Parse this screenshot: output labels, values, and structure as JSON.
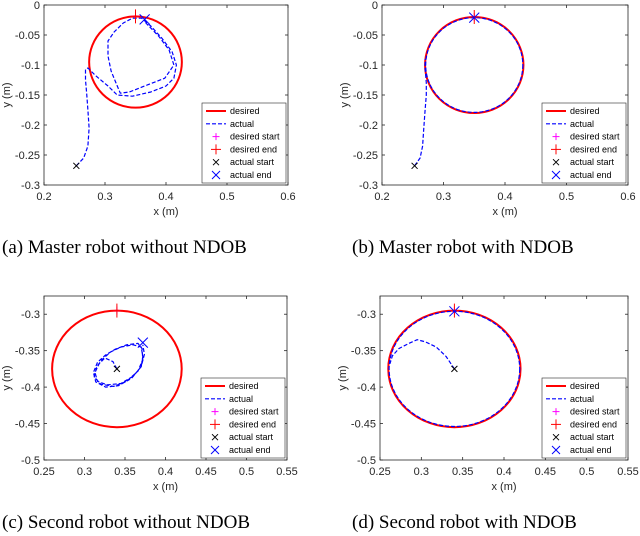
{
  "chart_data": [
    {
      "type": "line",
      "caption": "(a) Master robot without NDOB",
      "xlabel": "x (m)",
      "ylabel": "y (m)",
      "xlim": [
        0.2,
        0.6
      ],
      "ylim": [
        -0.3,
        0
      ],
      "xticks": [
        "0.2",
        "0.3",
        "0.4",
        "0.5",
        "0.6"
      ],
      "yticks": [
        "0",
        "-0.05",
        "-0.1",
        "-0.15",
        "-0.2",
        "-0.25",
        "-0.3"
      ],
      "legend_position": "lower-right",
      "desired_circle": {
        "center": [
          0.35,
          -0.095
        ],
        "radius": 0.076
      },
      "actual_path": [
        [
          0.253,
          -0.268
        ],
        [
          0.265,
          -0.255
        ],
        [
          0.272,
          -0.235
        ],
        [
          0.274,
          -0.205
        ],
        [
          0.272,
          -0.175
        ],
        [
          0.27,
          -0.148
        ],
        [
          0.268,
          -0.125
        ],
        [
          0.268,
          -0.108
        ],
        [
          0.272,
          -0.105
        ],
        [
          0.285,
          -0.118
        ],
        [
          0.305,
          -0.135
        ],
        [
          0.32,
          -0.15
        ],
        [
          0.345,
          -0.152
        ],
        [
          0.375,
          -0.145
        ],
        [
          0.4,
          -0.135
        ],
        [
          0.413,
          -0.122
        ],
        [
          0.417,
          -0.1
        ],
        [
          0.41,
          -0.078
        ],
        [
          0.393,
          -0.055
        ],
        [
          0.375,
          -0.035
        ],
        [
          0.36,
          -0.022
        ],
        [
          0.345,
          -0.022
        ],
        [
          0.33,
          -0.03
        ],
        [
          0.315,
          -0.045
        ],
        [
          0.305,
          -0.06
        ],
        [
          0.305,
          -0.085
        ],
        [
          0.31,
          -0.11
        ],
        [
          0.318,
          -0.13
        ],
        [
          0.325,
          -0.147
        ],
        [
          0.34,
          -0.145
        ],
        [
          0.37,
          -0.133
        ],
        [
          0.398,
          -0.122
        ],
        [
          0.413,
          -0.1
        ],
        [
          0.405,
          -0.075
        ],
        [
          0.388,
          -0.052
        ],
        [
          0.367,
          -0.03
        ],
        [
          0.365,
          -0.024
        ]
      ],
      "desired_start": [
        0.35,
        -0.019
      ],
      "desired_end": [
        0.35,
        -0.019
      ],
      "actual_start": [
        0.253,
        -0.268
      ],
      "actual_end": [
        0.365,
        -0.024
      ],
      "legend": [
        "desired",
        "actual",
        "desired start",
        "desired end",
        "actual start",
        "actual end"
      ],
      "colors": {
        "desired": "#ff0000",
        "actual": "#0000ff",
        "desired_start": "#ff00ff",
        "desired_end": "#ff0000",
        "actual_start": "#000000",
        "actual_end": "#0000ff"
      }
    },
    {
      "type": "line",
      "caption": "(b) Master robot with NDOB",
      "xlabel": "x (m)",
      "ylabel": "y (m)",
      "xlim": [
        0.2,
        0.6
      ],
      "ylim": [
        -0.3,
        0
      ],
      "xticks": [
        "0.2",
        "0.3",
        "0.4",
        "0.5",
        "0.6"
      ],
      "yticks": [
        "0",
        "-0.05",
        "-0.1",
        "-0.15",
        "-0.2",
        "-0.25",
        "-0.3"
      ],
      "legend_position": "lower-right",
      "desired_circle": {
        "center": [
          0.35,
          -0.1
        ],
        "radius": 0.08
      },
      "actual_path": [
        [
          0.253,
          -0.268
        ],
        [
          0.262,
          -0.255
        ],
        [
          0.266,
          -0.235
        ],
        [
          0.268,
          -0.205
        ],
        [
          0.27,
          -0.175
        ],
        [
          0.272,
          -0.15
        ],
        [
          0.272,
          -0.13
        ],
        [
          0.27,
          -0.105
        ],
        [
          0.27,
          -0.09
        ]
      ],
      "actual_circle": {
        "center": [
          0.35,
          -0.1
        ],
        "radius": 0.079
      },
      "desired_start": [
        0.35,
        -0.02
      ],
      "desired_end": [
        0.35,
        -0.02
      ],
      "actual_start": [
        0.253,
        -0.268
      ],
      "actual_end": [
        0.35,
        -0.021
      ],
      "legend": [
        "desired",
        "actual",
        "desired start",
        "desired end",
        "actual start",
        "actual end"
      ],
      "colors": {
        "desired": "#ff0000",
        "actual": "#0000ff",
        "desired_start": "#ff00ff",
        "desired_end": "#ff0000",
        "actual_start": "#000000",
        "actual_end": "#0000ff"
      }
    },
    {
      "type": "line",
      "caption": "(c) Second robot without NDOB",
      "xlabel": "x (m)",
      "ylabel": "y (m)",
      "xlim": [
        0.25,
        0.55
      ],
      "ylim": [
        -0.5,
        -0.275
      ],
      "xticks": [
        "0.25",
        "0.3",
        "0.35",
        "0.4",
        "0.45",
        "0.5",
        "0.55"
      ],
      "yticks": [
        "-0.3",
        "-0.35",
        "-0.4",
        "-0.45",
        "-0.5"
      ],
      "legend_position": "lower-right",
      "desired_circle": {
        "center": [
          0.34,
          -0.375
        ],
        "radius": 0.08
      },
      "actual_path": [
        [
          0.34,
          -0.375
        ],
        [
          0.335,
          -0.365
        ],
        [
          0.325,
          -0.36
        ],
        [
          0.318,
          -0.368
        ],
        [
          0.313,
          -0.38
        ],
        [
          0.316,
          -0.392
        ],
        [
          0.328,
          -0.397
        ],
        [
          0.345,
          -0.395
        ],
        [
          0.36,
          -0.385
        ],
        [
          0.37,
          -0.372
        ],
        [
          0.372,
          -0.358
        ],
        [
          0.37,
          -0.345
        ],
        [
          0.36,
          -0.342
        ],
        [
          0.345,
          -0.345
        ],
        [
          0.332,
          -0.352
        ],
        [
          0.322,
          -0.362
        ],
        [
          0.315,
          -0.372
        ],
        [
          0.312,
          -0.386
        ],
        [
          0.32,
          -0.396
        ],
        [
          0.336,
          -0.399
        ],
        [
          0.352,
          -0.392
        ],
        [
          0.366,
          -0.378
        ],
        [
          0.372,
          -0.362
        ],
        [
          0.371,
          -0.347
        ],
        [
          0.366,
          -0.34
        ],
        [
          0.352,
          -0.342
        ],
        [
          0.338,
          -0.348
        ],
        [
          0.326,
          -0.356
        ],
        [
          0.316,
          -0.366
        ],
        [
          0.311,
          -0.38
        ],
        [
          0.314,
          -0.393
        ],
        [
          0.326,
          -0.4
        ],
        [
          0.342,
          -0.398
        ],
        [
          0.358,
          -0.388
        ],
        [
          0.37,
          -0.372
        ],
        [
          0.374,
          -0.355
        ],
        [
          0.372,
          -0.342
        ]
      ],
      "desired_start": [
        0.34,
        -0.295
      ],
      "desired_end": [
        0.34,
        -0.295
      ],
      "actual_start": [
        0.34,
        -0.375
      ],
      "actual_end": [
        0.372,
        -0.339
      ],
      "legend": [
        "desired",
        "actual",
        "desired start",
        "desired end",
        "actual start",
        "actual end"
      ],
      "colors": {
        "desired": "#ff0000",
        "actual": "#0000ff",
        "desired_start": "#ff00ff",
        "desired_end": "#ff0000",
        "actual_start": "#000000",
        "actual_end": "#0000ff"
      }
    },
    {
      "type": "line",
      "caption": "(d) Second robot with NDOB",
      "xlabel": "x (m)",
      "ylabel": "y (m)",
      "xlim": [
        0.25,
        0.55
      ],
      "ylim": [
        -0.5,
        -0.275
      ],
      "xticks": [
        "0.25",
        "0.3",
        "0.35",
        "0.4",
        "0.45",
        "0.5",
        "0.55"
      ],
      "yticks": [
        "-0.3",
        "-0.35",
        "-0.4",
        "-0.45",
        "-0.5"
      ],
      "legend_position": "lower-right",
      "desired_circle": {
        "center": [
          0.34,
          -0.375
        ],
        "radius": 0.08
      },
      "actual_path": [
        [
          0.34,
          -0.375
        ],
        [
          0.33,
          -0.358
        ],
        [
          0.318,
          -0.345
        ],
        [
          0.305,
          -0.338
        ],
        [
          0.295,
          -0.335
        ],
        [
          0.285,
          -0.34
        ],
        [
          0.273,
          -0.347
        ],
        [
          0.265,
          -0.357
        ],
        [
          0.262,
          -0.368
        ]
      ],
      "actual_circle": {
        "center": [
          0.34,
          -0.375
        ],
        "radius": 0.079
      },
      "desired_start": [
        0.34,
        -0.295
      ],
      "desired_end": [
        0.34,
        -0.295
      ],
      "actual_start": [
        0.34,
        -0.375
      ],
      "actual_end": [
        0.34,
        -0.296
      ],
      "legend": [
        "desired",
        "actual",
        "desired start",
        "desired end",
        "actual start",
        "actual end"
      ],
      "colors": {
        "desired": "#ff0000",
        "actual": "#0000ff",
        "desired_start": "#ff00ff",
        "desired_end": "#ff0000",
        "actual_start": "#000000",
        "actual_end": "#0000ff"
      }
    }
  ]
}
